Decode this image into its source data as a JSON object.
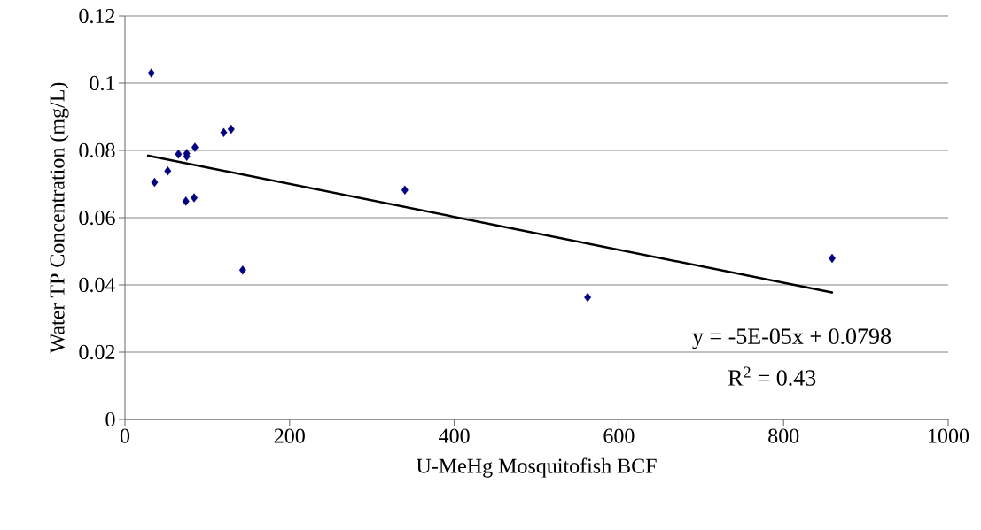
{
  "chart_data": {
    "type": "scatter",
    "xlabel": "U-MeHg Mosquitofish BCF",
    "ylabel": "Water TP Concentration (mg/L)",
    "xlim": [
      0,
      1000
    ],
    "xticks": [
      0,
      200,
      400,
      600,
      800,
      1000
    ],
    "ylim": [
      0,
      0.12
    ],
    "yticks": [
      0,
      0.02,
      0.04,
      0.06,
      0.08,
      0.1,
      0.12
    ],
    "grid": "y",
    "series": [
      {
        "marker": "diamond",
        "color": "#000080",
        "x": [
          32,
          36,
          52,
          65,
          75,
          75,
          85,
          74,
          84,
          120,
          129,
          143,
          340,
          562,
          859
        ],
        "values": [
          0.103,
          0.0705,
          0.0739,
          0.0789,
          0.0791,
          0.0782,
          0.0809,
          0.0649,
          0.0659,
          0.0853,
          0.0863,
          0.0444,
          0.0682,
          0.0363,
          0.0479
        ]
      },
      {
        "type": "line",
        "marker": "none",
        "color": "#000000",
        "x": [
          27,
          860
        ],
        "values": [
          0.0785,
          0.0377
        ]
      }
    ],
    "annotations": [
      "y = -5E-05x + 0.0798",
      "R$^{2}$ = 0.43"
    ]
  }
}
